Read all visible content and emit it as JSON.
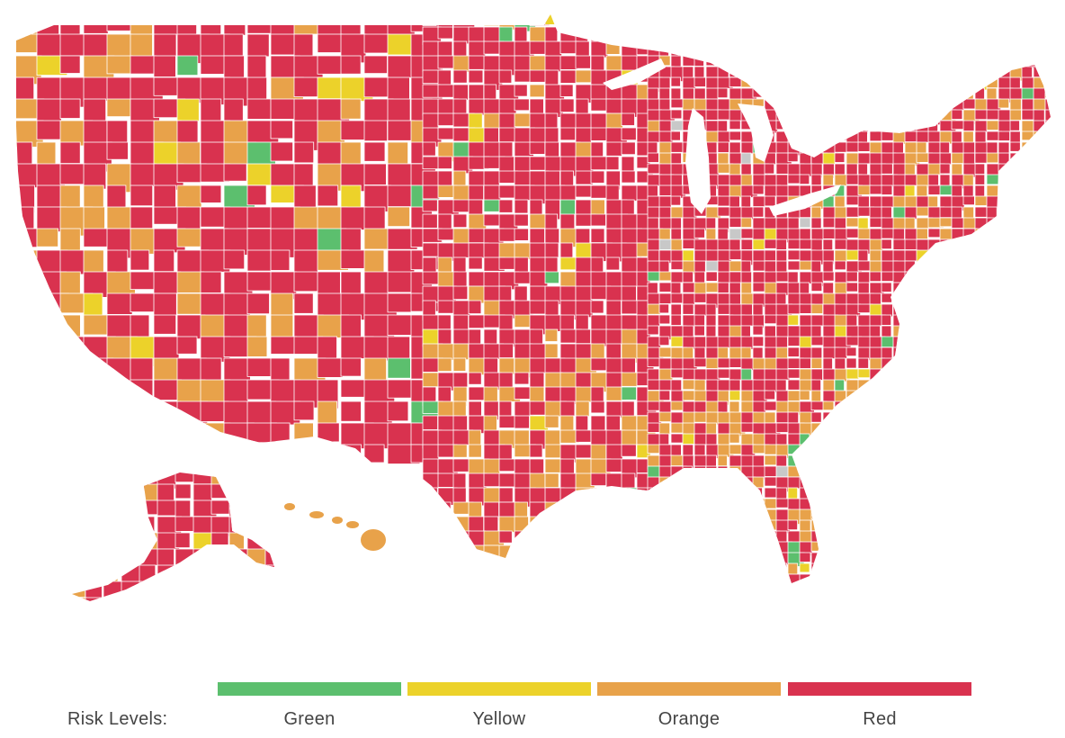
{
  "colors": {
    "green": "#5cbf6e",
    "yellow": "#ecd22a",
    "orange": "#e8a24a",
    "red": "#d9324f",
    "no_data": "#c8c8c8",
    "border": "#ffffff"
  },
  "legend": {
    "title": "Risk Levels:",
    "items": [
      {
        "label": "Green",
        "color": "#5cbf6e"
      },
      {
        "label": "Yellow",
        "color": "#ecd22a"
      },
      {
        "label": "Orange",
        "color": "#e8a24a"
      },
      {
        "label": "Red",
        "color": "#d9324f"
      }
    ]
  }
}
